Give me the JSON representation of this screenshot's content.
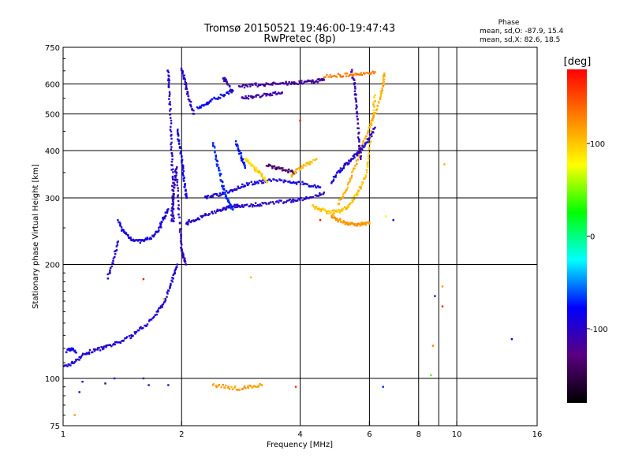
{
  "chart_data": {
    "type": "scatter",
    "title": "Tromsø 20150521 19:46:00-19:47:43",
    "subtitle": "RwPretec (8p)",
    "xlabel": "Frequency [MHz]",
    "ylabel": "Stationary phase Virtual Height [km]",
    "xscale": "log",
    "yscale": "log",
    "xlim": [
      1,
      16
    ],
    "ylim": [
      75,
      750
    ],
    "x_ticks": [
      1,
      2,
      4,
      6,
      8,
      10,
      16
    ],
    "x_tick_labels": [
      "1",
      "2",
      "4",
      "6",
      "8",
      "10",
      "16"
    ],
    "x_grid": [
      2,
      4,
      6,
      8,
      10
    ],
    "x_minor": [
      9
    ],
    "y_ticks": [
      75,
      100,
      200,
      300,
      400,
      500,
      600,
      750
    ],
    "y_tick_labels": [
      "75",
      "100",
      "200",
      "300",
      "400",
      "500",
      "600",
      "750"
    ],
    "y_grid": [
      100,
      200,
      300,
      400,
      500,
      600
    ],
    "grid": true,
    "stats": {
      "header": "Phase",
      "lines": [
        "mean, sd,O: -87.9, 15.4",
        "mean, sd,X: 82.6, 18.5"
      ]
    },
    "colorbar": {
      "label": "[deg]",
      "range": [
        -180,
        180
      ],
      "ticks": [
        100,
        0,
        -100
      ],
      "tick_labels": [
        "100",
        "0",
        "-100"
      ],
      "colors": [
        "#000000",
        "#5a0080",
        "#0000ff",
        "#00ffff",
        "#00ff00",
        "#ffff00",
        "#ff8000",
        "#ff0000"
      ]
    },
    "traces": [
      {
        "x": [
          1.0,
          1.06,
          1.12,
          1.18,
          1.25,
          1.32,
          1.4,
          1.5,
          1.6,
          1.7,
          1.78,
          1.85,
          1.9,
          1.95
        ],
        "y": [
          107,
          110,
          115,
          118,
          120,
          122,
          125,
          130,
          137,
          145,
          155,
          170,
          185,
          200
        ],
        "phase": -95
      },
      {
        "x": [
          1.02,
          1.05,
          1.08
        ],
        "y": [
          118,
          120,
          117
        ],
        "phase": -80
      },
      {
        "x": [
          1.38,
          1.42,
          1.48,
          1.55,
          1.62,
          1.7,
          1.76,
          1.8,
          1.85
        ],
        "y": [
          260,
          245,
          235,
          230,
          232,
          238,
          250,
          265,
          280
        ],
        "phase": -90
      },
      {
        "x": [
          1.3,
          1.34,
          1.38
        ],
        "y": [
          185,
          205,
          230
        ],
        "phase": -95
      },
      {
        "x": [
          1.85,
          1.86,
          1.87,
          1.88,
          1.89,
          1.9,
          1.9,
          1.91
        ],
        "y": [
          650,
          600,
          520,
          440,
          380,
          330,
          290,
          260
        ],
        "phase": -95
      },
      {
        "x": [
          1.88,
          1.9,
          1.92,
          1.94,
          1.96,
          1.98,
          2.0,
          2.02,
          2.05
        ],
        "y": [
          260,
          290,
          330,
          360,
          300,
          250,
          220,
          210,
          200
        ],
        "phase": -105
      },
      {
        "x": [
          1.95,
          1.97,
          2.0,
          2.02,
          2.04,
          2.06
        ],
        "y": [
          450,
          420,
          380,
          350,
          320,
          300
        ],
        "phase": -85
      },
      {
        "x": [
          2.0,
          2.03,
          2.06,
          2.1,
          2.15
        ],
        "y": [
          660,
          620,
          580,
          540,
          500
        ],
        "phase": -100
      },
      {
        "x": [
          2.05,
          2.1,
          2.2,
          2.35,
          2.5,
          2.6,
          2.7,
          2.8,
          3.0,
          3.2,
          3.5,
          3.8,
          4.0,
          4.3,
          4.6
        ],
        "y": [
          255,
          260,
          265,
          272,
          278,
          282,
          285,
          286,
          287,
          289,
          292,
          295,
          297,
          300,
          310
        ],
        "phase": -100
      },
      {
        "x": [
          2.3,
          2.45,
          2.6,
          2.75,
          2.9,
          3.1,
          3.3,
          3.6,
          3.9,
          4.2,
          4.5
        ],
        "y": [
          300,
          305,
          310,
          318,
          325,
          330,
          333,
          333,
          330,
          325,
          320
        ],
        "phase": -90
      },
      {
        "x": [
          2.2,
          2.3,
          2.4,
          2.55,
          2.7
        ],
        "y": [
          520,
          530,
          545,
          560,
          575
        ],
        "phase": -80
      },
      {
        "x": [
          2.55,
          2.6,
          2.68
        ],
        "y": [
          620,
          610,
          570
        ],
        "phase": -110
      },
      {
        "x": [
          2.8,
          3.0,
          3.2,
          3.4,
          3.6,
          3.8,
          4.0,
          4.2,
          4.4,
          4.6
        ],
        "y": [
          590,
          595,
          598,
          600,
          602,
          603,
          605,
          608,
          612,
          615
        ],
        "phase": -115
      },
      {
        "x": [
          2.4,
          2.45,
          2.5,
          2.55,
          2.6,
          2.65,
          2.7
        ],
        "y": [
          420,
          380,
          350,
          320,
          300,
          290,
          280
        ],
        "phase": -70
      },
      {
        "x": [
          2.75,
          2.8,
          2.85,
          2.9
        ],
        "y": [
          420,
          400,
          380,
          360
        ],
        "phase": -75
      },
      {
        "x": [
          2.85,
          3.0,
          3.2,
          3.4,
          3.6
        ],
        "y": [
          550,
          555,
          560,
          565,
          570
        ],
        "phase": -110
      },
      {
        "x": [
          2.9,
          3.0,
          3.1,
          3.2,
          3.3
        ],
        "y": [
          380,
          370,
          355,
          345,
          330
        ],
        "phase": 95
      },
      {
        "x": [
          3.3,
          3.5,
          3.7,
          3.9
        ],
        "y": [
          365,
          360,
          355,
          350
        ],
        "phase": -140
      },
      {
        "x": [
          3.8,
          4.0,
          4.2,
          4.4
        ],
        "y": [
          345,
          360,
          370,
          380
        ],
        "phase": 105
      },
      {
        "x": [
          4.3,
          4.5,
          4.7,
          4.9,
          5.1,
          5.3,
          5.5,
          5.7,
          5.9,
          6.0,
          6.1,
          6.2
        ],
        "y": [
          285,
          280,
          275,
          275,
          278,
          285,
          300,
          320,
          350,
          400,
          480,
          560
        ],
        "phase": 100
      },
      {
        "x": [
          5.0,
          5.2,
          5.4,
          5.6,
          5.8,
          6.0,
          6.2,
          6.4,
          6.5,
          6.55
        ],
        "y": [
          290,
          310,
          340,
          380,
          420,
          460,
          500,
          550,
          600,
          640
        ],
        "phase": 110
      },
      {
        "x": [
          4.8,
          5.0,
          5.2,
          5.4,
          5.6,
          5.8,
          6.0,
          6.2
        ],
        "y": [
          330,
          350,
          365,
          380,
          395,
          410,
          430,
          460
        ],
        "phase": -95
      },
      {
        "x": [
          5.4,
          5.5,
          5.55,
          5.6,
          5.65,
          5.7
        ],
        "y": [
          650,
          600,
          540,
          480,
          420,
          380
        ],
        "phase": -110
      },
      {
        "x": [
          4.8,
          5.0,
          5.2,
          5.4,
          5.6,
          5.8,
          6.0
        ],
        "y": [
          270,
          262,
          258,
          256,
          255,
          256,
          258
        ],
        "phase": 120
      },
      {
        "x": [
          2.4,
          2.6,
          2.8,
          3.0,
          3.2
        ],
        "y": [
          96,
          95,
          94,
          95,
          96
        ],
        "phase": 115
      },
      {
        "x": [
          4.6,
          5.0,
          5.4,
          5.8,
          6.2
        ],
        "y": [
          628,
          632,
          635,
          640,
          645
        ],
        "phase": 130
      }
    ],
    "points": [
      {
        "x": 1.1,
        "y": 92,
        "phase": -105
      },
      {
        "x": 1.12,
        "y": 98,
        "phase": -100
      },
      {
        "x": 1.28,
        "y": 97,
        "phase": -140
      },
      {
        "x": 1.35,
        "y": 100,
        "phase": -95
      },
      {
        "x": 1.6,
        "y": 100,
        "phase": -100
      },
      {
        "x": 1.65,
        "y": 96,
        "phase": -105
      },
      {
        "x": 1.85,
        "y": 96,
        "phase": -110
      },
      {
        "x": 1.6,
        "y": 183,
        "phase": 170
      },
      {
        "x": 1.8,
        "y": 162,
        "phase": 100
      },
      {
        "x": 3.0,
        "y": 185,
        "phase": 105
      },
      {
        "x": 3.9,
        "y": 95,
        "phase": 160
      },
      {
        "x": 4.0,
        "y": 480,
        "phase": 170
      },
      {
        "x": 4.5,
        "y": 262,
        "phase": 170
      },
      {
        "x": 6.5,
        "y": 95,
        "phase": -70
      },
      {
        "x": 6.6,
        "y": 268,
        "phase": 80
      },
      {
        "x": 6.9,
        "y": 262,
        "phase": -100
      },
      {
        "x": 8.6,
        "y": 102,
        "phase": 40
      },
      {
        "x": 8.8,
        "y": 165,
        "phase": -110
      },
      {
        "x": 9.2,
        "y": 155,
        "phase": 170
      },
      {
        "x": 9.2,
        "y": 175,
        "phase": 120
      },
      {
        "x": 9.3,
        "y": 368,
        "phase": 110
      },
      {
        "x": 8.7,
        "y": 122,
        "phase": 130
      },
      {
        "x": 13.8,
        "y": 127,
        "phase": -80
      },
      {
        "x": 1.07,
        "y": 80,
        "phase": 120
      }
    ]
  }
}
